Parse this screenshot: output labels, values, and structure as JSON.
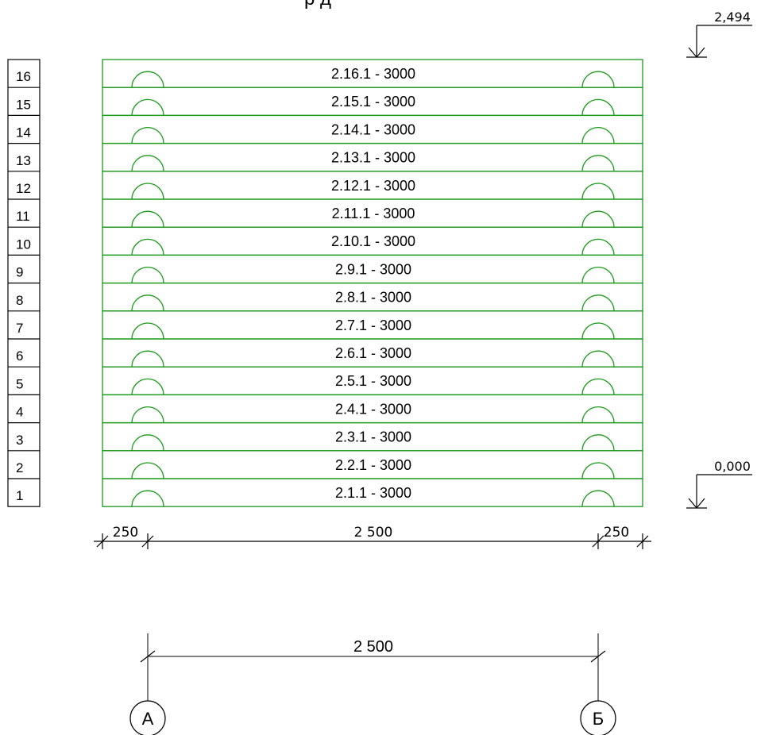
{
  "title_fragment": "р д",
  "elevations": {
    "top": "2,494",
    "bottom": "0,000"
  },
  "rows": [
    {
      "num": "16",
      "label": "2.16.1 - 3000"
    },
    {
      "num": "15",
      "label": "2.15.1 - 3000"
    },
    {
      "num": "14",
      "label": "2.14.1 - 3000"
    },
    {
      "num": "13",
      "label": "2.13.1 - 3000"
    },
    {
      "num": "12",
      "label": "2.12.1 - 3000"
    },
    {
      "num": "11",
      "label": "2.11.1 - 3000"
    },
    {
      "num": "10",
      "label": "2.10.1 - 3000"
    },
    {
      "num": "9",
      "label": "2.9.1 - 3000"
    },
    {
      "num": "8",
      "label": "2.8.1 - 3000"
    },
    {
      "num": "7",
      "label": "2.7.1 - 3000"
    },
    {
      "num": "6",
      "label": "2.6.1 - 3000"
    },
    {
      "num": "5",
      "label": "2.5.1 - 3000"
    },
    {
      "num": "4",
      "label": "2.4.1 - 3000"
    },
    {
      "num": "3",
      "label": "2.3.1 - 3000"
    },
    {
      "num": "2",
      "label": "2.2.1 - 3000"
    },
    {
      "num": "1",
      "label": "2.1.1 - 3000"
    }
  ],
  "dimensions": {
    "left": "250",
    "middle": "2 500",
    "right": "250",
    "axis_span": "2 500"
  },
  "axes": [
    "А",
    "Б"
  ],
  "colors": {
    "block": "#1a9a1a",
    "line": "#000000",
    "text": "#000000"
  }
}
